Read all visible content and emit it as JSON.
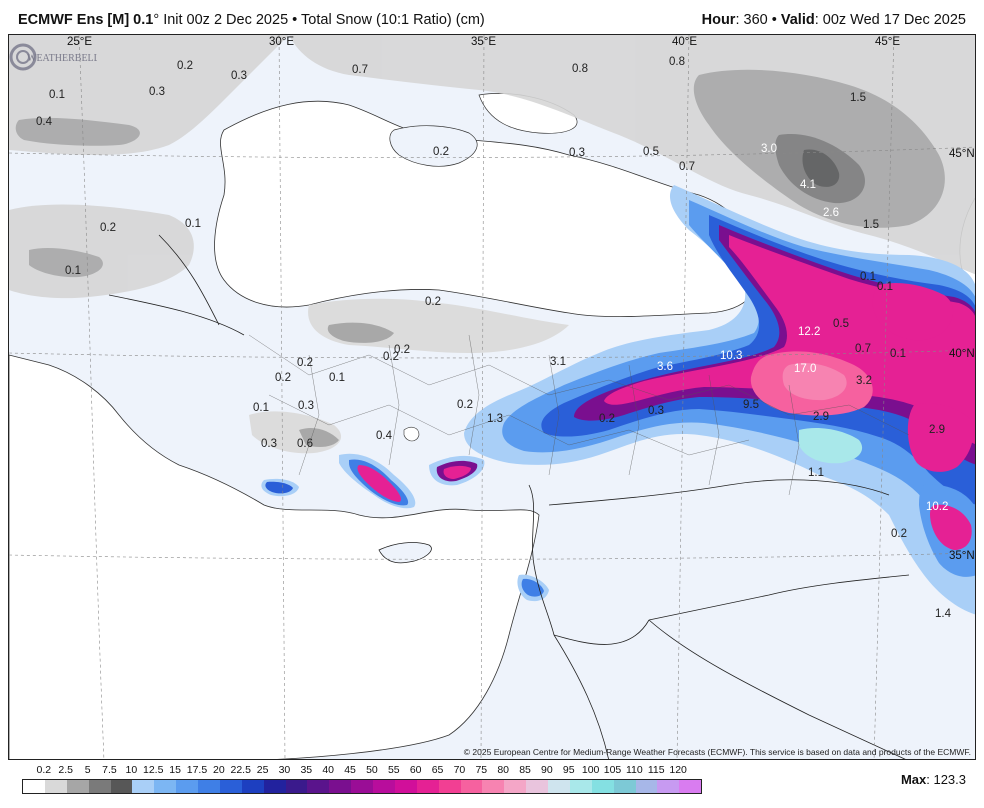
{
  "header": {
    "model": "ECMWF Ens [M] 0.1",
    "degree": "°",
    "init_text": "Init 00z 2 Dec 2025",
    "bullet": "•",
    "product": "Total Snow (10:1 Ratio) (cm)",
    "hour_label": "Hour",
    "hour_value": ": 360",
    "valid_label": "Valid",
    "valid_value": ": 00z Wed 17 Dec 2025"
  },
  "map": {
    "lon_labels": [
      "25°E",
      "30°E",
      "35°E",
      "40°E",
      "45°E"
    ],
    "lat_labels": [
      "45°N",
      "40°N",
      "35°N"
    ],
    "value_labels": [
      "0.2",
      "0.3",
      "0.7",
      "0.8",
      "0.8",
      "0.1",
      "0.3",
      "0.4",
      "1.5",
      "3.0",
      "0.2",
      "0.3",
      "0.5",
      "0.7",
      "4.1",
      "2.6",
      "1.5",
      "0.1",
      "0.2",
      "0.1",
      "0.1",
      "0.1",
      "0.2",
      "12.2",
      "0.5",
      "0.2",
      "0.2",
      "0.2",
      "0.7",
      "0.1",
      "3.1",
      "10.3",
      "17.0",
      "0.2",
      "0.1",
      "3.6",
      "3.2",
      "0.1",
      "0.3",
      "0.2",
      "9.5",
      "2.9",
      "1.3",
      "0.2",
      "0.3",
      "0.3",
      "0.6",
      "0.4",
      "2.9",
      "1.1",
      "10.2",
      "0.2",
      "1.4"
    ],
    "credit": "© 2025 European Centre for Medium-Range Weather Forecasts (ECMWF). This service is based on data and products of the ECMWF.",
    "logo_text": "WEATHERBELL"
  },
  "legend": {
    "ticks": [
      "0.2",
      "2.5",
      "5",
      "7.5",
      "10",
      "12.5",
      "15",
      "17.5",
      "20",
      "22.5",
      "25",
      "30",
      "35",
      "40",
      "45",
      "50",
      "55",
      "60",
      "65",
      "70",
      "75",
      "80",
      "85",
      "90",
      "95",
      "100",
      "105",
      "110",
      "115",
      "120"
    ],
    "colors": [
      "#ffffff",
      "#d9d9d9",
      "#a6a6a6",
      "#7a7a7a",
      "#575757",
      "#a9cff7",
      "#7cb6f3",
      "#5b9cef",
      "#3f7fe6",
      "#2a5fd8",
      "#1d3fc0",
      "#22229e",
      "#3a1a8c",
      "#5a148c",
      "#7a0f8f",
      "#9a0d96",
      "#b80d9c",
      "#d10f9a",
      "#e52194",
      "#f23f93",
      "#f6619f",
      "#f783b1",
      "#f4a6c7",
      "#e9c4dd",
      "#cfe4ee",
      "#a9e8ea",
      "#84e0e2",
      "#7dc9d6",
      "#a7b7e8",
      "#c79af1",
      "#d97cf0"
    ],
    "max_label": "Max",
    "max_value": ": 123.3"
  }
}
